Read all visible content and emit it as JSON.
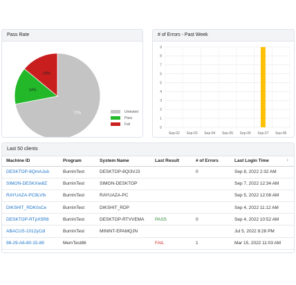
{
  "pass_rate": {
    "title": "Pass Rate",
    "legend": [
      {
        "label": "Untested",
        "color": "#c4c4c4"
      },
      {
        "label": "Pass",
        "color": "#22b82a"
      },
      {
        "label": "Fail",
        "color": "#c81e1e"
      }
    ],
    "chart_data": {
      "type": "pie",
      "labels": [
        "Untested",
        "Pass",
        "Fail"
      ],
      "values": [
        72,
        14,
        14
      ],
      "value_labels": [
        "72%",
        "14%",
        "14%"
      ],
      "colors": [
        "#c4c4c4",
        "#22b82a",
        "#c81e1e"
      ],
      "legend_position": "right"
    }
  },
  "errors": {
    "title": "# of Errors - Past Week",
    "chart_data": {
      "type": "bar",
      "categories": [
        "Sep-02",
        "Sep-03",
        "Sep-04",
        "Sep-05",
        "Sep-06",
        "Sep-07",
        "Sep-08"
      ],
      "values": [
        0,
        0,
        0,
        0,
        0,
        9,
        0
      ],
      "ylim": [
        0,
        9
      ],
      "yticks": [
        "0",
        "1",
        "2",
        "3",
        "4",
        "5",
        "6",
        "7",
        "8",
        "9"
      ],
      "color": "#ffc107",
      "grid": true
    }
  },
  "clients": {
    "title": "Last 50 clients",
    "columns": [
      "Machine ID",
      "Program",
      "System Name",
      "Last Result",
      "# of Errors",
      "Last Login Time"
    ],
    "sort_icon": "↕",
    "rows": [
      {
        "id": "DESKTOP-8QmAJub",
        "program": "BurnInTest",
        "system": "DESKTOP-8QI3VJ3",
        "result": "",
        "errors": "0",
        "login": "Sep 8, 2022 2:32 AM"
      },
      {
        "id": "SIMON-DESKXiw8Z",
        "program": "BurnInTest",
        "system": "SIMON-DESKTOP",
        "result": "",
        "errors": "",
        "login": "Sep 7, 2022 12:34 AM"
      },
      {
        "id": "RAYUAZA-PC9LVfx",
        "program": "BurnInTest",
        "system": "RAYUAZA-PC",
        "result": "",
        "errors": "",
        "login": "Sep 5, 2022 12:08 AM"
      },
      {
        "id": "DIKSHIT_RDK0sCe",
        "program": "BurnInTest",
        "system": "DIKSHIT_RDP",
        "result": "",
        "errors": "",
        "login": "Sep 4, 2022 11:12 AM"
      },
      {
        "id": "DESKTOP-RTpX5R8",
        "program": "BurnInTest",
        "system": "DESKTOP-RTVVEMA",
        "result": "PASS",
        "errors": "0",
        "login": "Sep 4, 2022 10:52 AM"
      },
      {
        "id": "ABACUS-1012yCdi",
        "program": "BurnInTest",
        "system": "MININT-EPAMQJN",
        "result": "",
        "errors": "",
        "login": "Jul 5, 2022 8:28 PM"
      },
      {
        "id": "98-29-A6-80-15-89",
        "program": "MemTest86",
        "system": "",
        "result": "FAIL",
        "errors": "1",
        "login": "Mar 15, 2022 11:03 AM"
      }
    ]
  }
}
